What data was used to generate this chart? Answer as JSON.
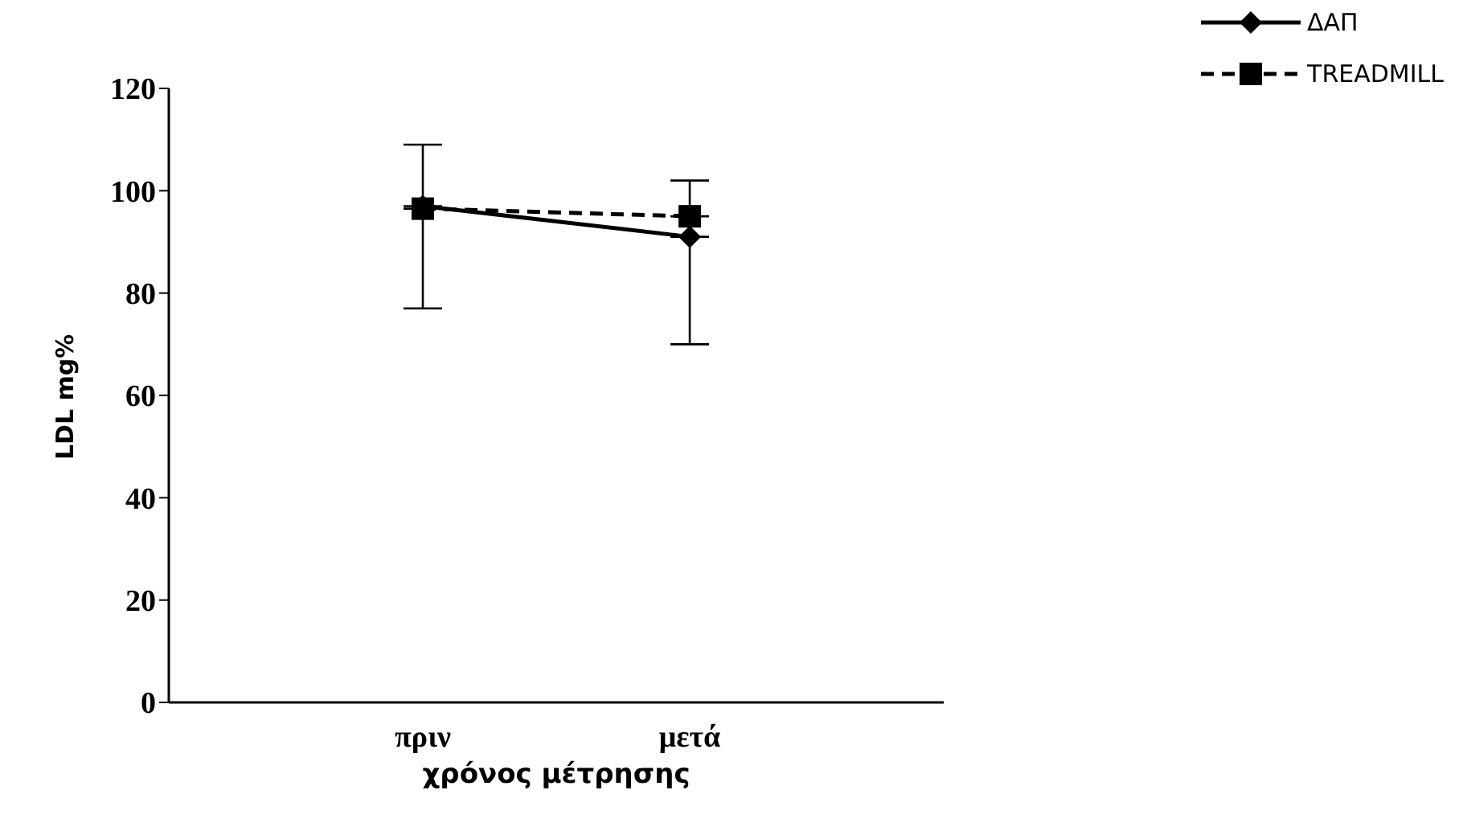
{
  "chart_data": {
    "type": "line",
    "xlabel": "χρόνος μέτρησης",
    "ylabel": "LDL mg%",
    "categories": [
      "πριν",
      "μετά"
    ],
    "series": [
      {
        "name": "ΔΑΠ",
        "color": "#000000",
        "values": [
          97,
          91
        ],
        "marker": "diamond",
        "line_style": "solid",
        "errors": [
          [
            77,
            97
          ],
          [
            70,
            91
          ]
        ]
      },
      {
        "name": "TREADMILL",
        "color": "#000000",
        "values": [
          96.5,
          95
        ],
        "marker": "square",
        "line_style": "dashed",
        "errors": [
          [
            96.5,
            109
          ],
          [
            95,
            102
          ]
        ]
      }
    ],
    "ylim": [
      0,
      120
    ],
    "yticks": [
      0,
      20,
      40,
      60,
      80,
      100,
      120
    ],
    "grid": false,
    "legend": "top right"
  }
}
